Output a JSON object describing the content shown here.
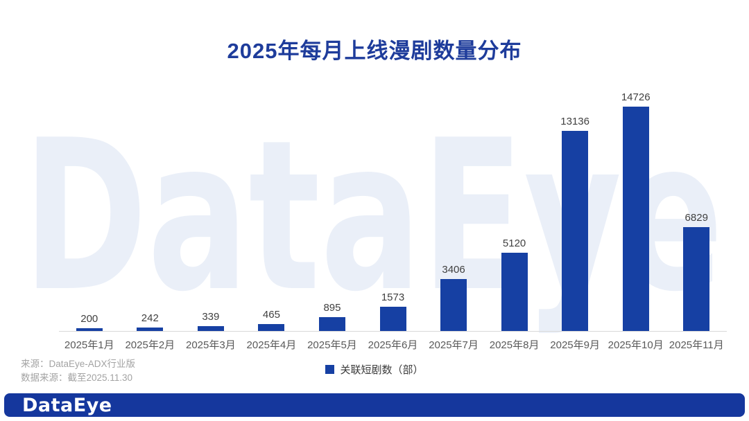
{
  "title": "2025年每月上线漫剧数量分布",
  "watermark_text": "DataEye",
  "colors": {
    "bar-color": "#1640a3",
    "title-color": "#1e3c9b",
    "watermark-color": "#eaeff8",
    "axis-label-color": "#595959",
    "value-label-color": "#404040",
    "baseline-color": "#d9d9d9",
    "footer-text-color": "#a3a3a3",
    "footer-bar-color": "#15379d"
  },
  "chart_data": {
    "type": "bar",
    "title": "2025年每月上线漫剧数量分布",
    "categories": [
      "2025年1月",
      "2025年2月",
      "2025年3月",
      "2025年4月",
      "2025年5月",
      "2025年6月",
      "2025年7月",
      "2025年8月",
      "2025年9月",
      "2025年10月",
      "2025年11月"
    ],
    "values": [
      200,
      242,
      339,
      465,
      895,
      1573,
      3406,
      5120,
      13136,
      14726,
      6829
    ],
    "series_name": "关联短剧数（部）",
    "xlabel": "",
    "ylabel": "",
    "ylim": [
      0,
      16000
    ],
    "ytick_step": 2000,
    "grid": false,
    "legend_position": "bottom-center",
    "data_labels": true
  },
  "legend": {
    "label": "关联短剧数（部）"
  },
  "footer": {
    "source_line1": "来源：DataEye-ADX行业版",
    "source_line2": "数据来源：截至2025.11.30",
    "logo_text": "DataEye"
  }
}
